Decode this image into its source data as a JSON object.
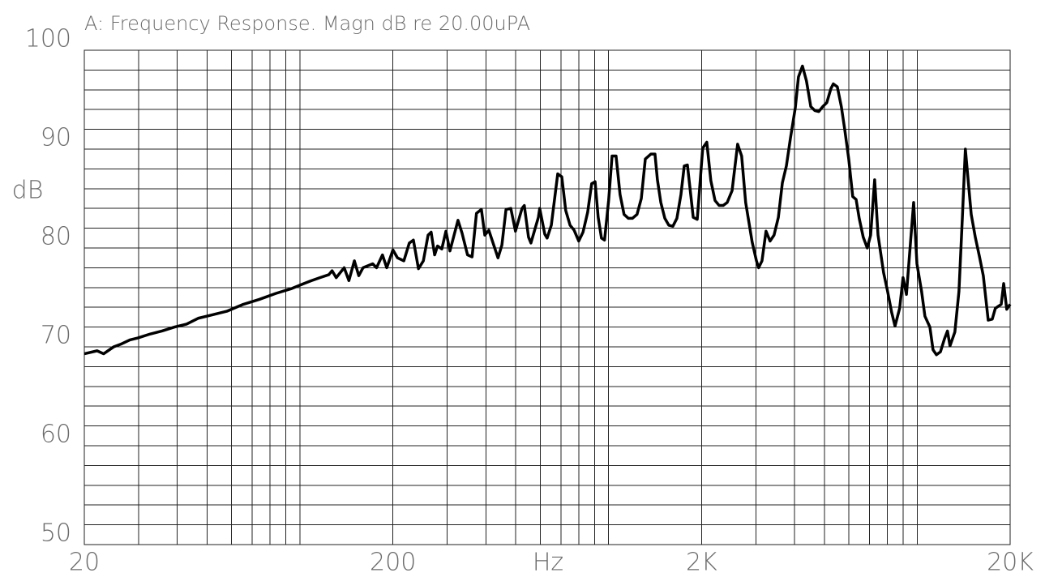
{
  "chart_data": {
    "type": "line",
    "title": "A: Frequency Response. Magn dB re 20.00uPA",
    "x_label": "Hz",
    "y_label": "dB",
    "xscale": "log",
    "color": "#000000",
    "grid": true,
    "xlim": [
      20,
      20000
    ],
    "ylim": [
      50,
      100
    ],
    "xticks": [
      20,
      200,
      {
        "value": 2000,
        "label": "2K"
      },
      {
        "value": 20000,
        "label": "20K"
      }
    ],
    "xminor": [
      30,
      40,
      50,
      60,
      70,
      80,
      90,
      100,
      300,
      400,
      500,
      600,
      700,
      800,
      900,
      1000,
      3000,
      4000,
      5000,
      6000,
      7000,
      8000,
      9000,
      10000
    ],
    "yticks": [
      50,
      60,
      70,
      80,
      90,
      100
    ],
    "yminor": [
      52,
      54,
      56,
      58,
      62,
      64,
      66,
      68,
      72,
      74,
      76,
      78,
      82,
      84,
      86,
      88,
      92,
      94,
      96,
      98
    ],
    "x": [
      20,
      22.0,
      23.1,
      24.9,
      26.4,
      28.1,
      29.8,
      32.7,
      35.7,
      39.2,
      42.9,
      46.9,
      51.4,
      57.9,
      65.5,
      73.8,
      83.4,
      94.0,
      103,
      109,
      116,
      124,
      127,
      131,
      139,
      144,
      150,
      155,
      160,
      172,
      177,
      185,
      191,
      200,
      207,
      217,
      226,
      233,
      242,
      251,
      260,
      266,
      273,
      279,
      288,
      297,
      306,
      325,
      335,
      349,
      361,
      373,
      387,
      397,
      409,
      438,
      451,
      465,
      482,
      499,
      524,
      533,
      550,
      560,
      592,
      598,
      621,
      632,
      652,
      684,
      705,
      726,
      750,
      773,
      800,
      826,
      855,
      881,
      904,
      925,
      948,
      970,
      1000,
      1026,
      1057,
      1089,
      1122,
      1159,
      1194,
      1236,
      1276,
      1315,
      1371,
      1413,
      1439,
      1476,
      1521,
      1567,
      1615,
      1664,
      1715,
      1758,
      1800,
      1845,
      1880,
      1937,
      2018,
      2080,
      2144,
      2212,
      2280,
      2350,
      2422,
      2512,
      2618,
      2698,
      2780,
      2918,
      3013,
      3062,
      3140,
      3236,
      3334,
      3436,
      3548,
      3656,
      3767,
      3882,
      4027,
      4122,
      4247,
      4375,
      4519,
      4656,
      4797,
      4943,
      5093,
      5248,
      5346,
      5508,
      5676,
      5821,
      5998,
      6180,
      6338,
      6486,
      6683,
      6887,
      7063,
      7278,
      7464,
      7780,
      8017,
      8261,
      8472,
      8770,
      8995,
      9226,
      9506,
      9735,
      9977,
      10330,
      10590,
      10990,
      11250,
      11540,
      11890,
      12250,
      12530,
      12770,
      13240,
      13650,
      14000,
      14320,
      14960,
      15420,
      15890,
      16370,
      16980,
      17500,
      17910,
      18710,
      19060,
      19500,
      20000
    ],
    "values": [
      69.3,
      69.6,
      69.3,
      70.0,
      70.3,
      70.7,
      70.9,
      71.3,
      71.6,
      72.0,
      72.3,
      72.9,
      73.2,
      73.6,
      74.3,
      74.8,
      75.4,
      75.9,
      76.4,
      76.7,
      77.0,
      77.3,
      77.7,
      77.0,
      78.0,
      76.7,
      78.7,
      77.2,
      78.0,
      78.4,
      78.0,
      79.3,
      78.0,
      79.8,
      79.0,
      78.7,
      80.5,
      80.8,
      77.9,
      78.7,
      81.3,
      81.6,
      79.3,
      80.2,
      79.9,
      81.7,
      79.7,
      82.8,
      81.5,
      79.3,
      79.1,
      83.5,
      83.9,
      81.3,
      81.8,
      79.0,
      80.3,
      83.9,
      84.0,
      81.7,
      84.0,
      84.3,
      81.1,
      80.5,
      83.1,
      84.0,
      81.4,
      81.0,
      82.3,
      87.5,
      87.2,
      83.8,
      82.3,
      81.8,
      80.7,
      81.6,
      83.6,
      86.5,
      86.7,
      83.1,
      81.0,
      80.8,
      84.8,
      89.3,
      89.3,
      85.4,
      83.4,
      83.0,
      83.0,
      83.4,
      85.0,
      89.0,
      89.5,
      89.5,
      86.9,
      84.6,
      83.0,
      82.3,
      82.2,
      83.0,
      85.4,
      88.3,
      88.4,
      85.4,
      83.1,
      82.9,
      90.1,
      90.7,
      86.8,
      84.8,
      84.3,
      84.3,
      84.6,
      85.8,
      90.5,
      89.3,
      84.6,
      80.6,
      78.7,
      78.0,
      78.7,
      81.7,
      80.7,
      81.3,
      83.1,
      86.6,
      88.3,
      91.1,
      94.2,
      97.3,
      98.4,
      96.9,
      94.3,
      93.9,
      93.8,
      94.3,
      94.7,
      96.1,
      96.6,
      96.3,
      94.3,
      92.0,
      89.0,
      85.2,
      84.9,
      83.0,
      81.1,
      80.0,
      81.3,
      86.9,
      81.3,
      77.5,
      75.6,
      73.5,
      72.1,
      73.9,
      77.0,
      75.3,
      80.5,
      84.6,
      78.4,
      75.6,
      73.1,
      72.0,
      69.7,
      69.2,
      69.5,
      70.8,
      71.6,
      70.1,
      71.5,
      75.6,
      83.0,
      90.0,
      83.4,
      81.1,
      79.2,
      77.2,
      72.7,
      72.8,
      73.9,
      74.3,
      76.4,
      73.8,
      74.3
    ]
  }
}
